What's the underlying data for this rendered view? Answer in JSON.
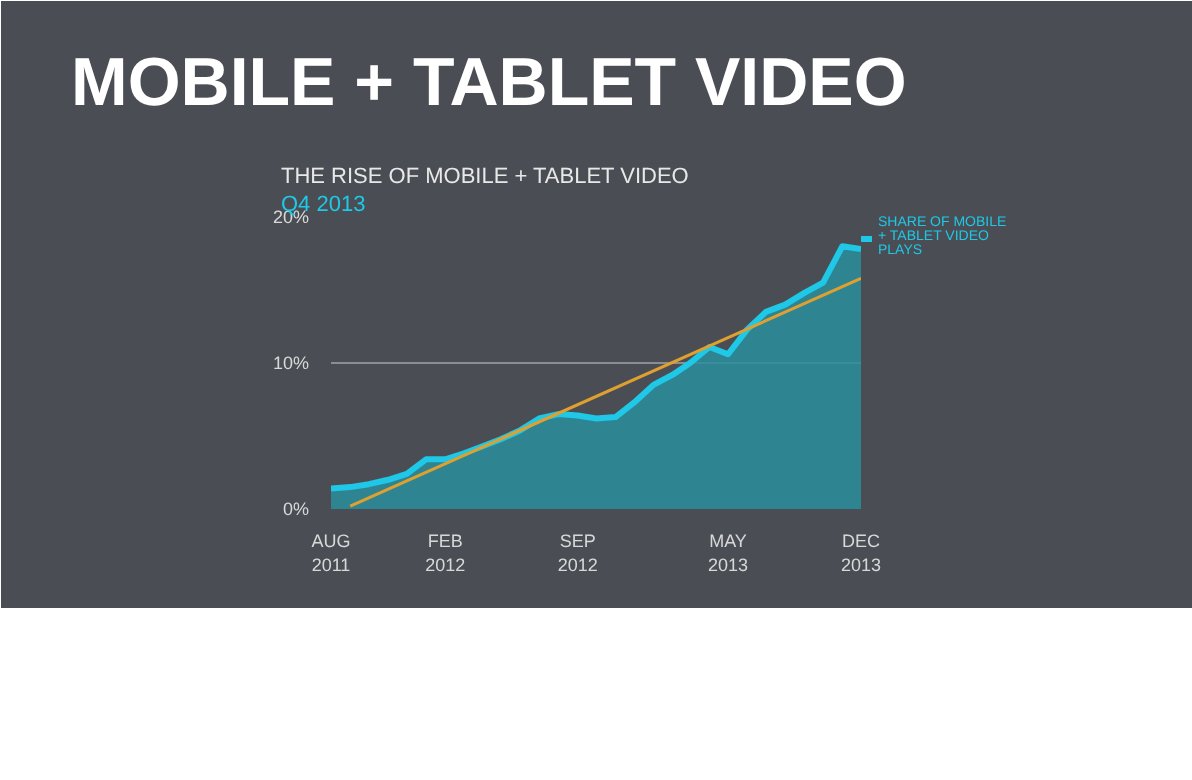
{
  "chart_data": {
    "type": "area",
    "title": "MOBILE + TABLET VIDEO",
    "subtitle": "THE RISE OF MOBILE + TABLET VIDEO",
    "annotations": [
      "Q4 2013"
    ],
    "xlim": [
      "2011-08",
      "2013-12"
    ],
    "xticks": [
      {
        "value": "2011-08",
        "label": "AUG\n2011"
      },
      {
        "value": "2012-02",
        "label": "FEB\n2012"
      },
      {
        "value": "2012-09",
        "label": "SEP\n2012"
      },
      {
        "value": "2013-05",
        "label": "MAY\n2013"
      },
      {
        "value": "2013-12",
        "label": "DEC\n2013"
      }
    ],
    "ylim": [
      0,
      20
    ],
    "yticks": [
      {
        "value": 0,
        "label": "0%"
      },
      {
        "value": 10,
        "label": "10%"
      },
      {
        "value": 20,
        "label": "20%"
      }
    ],
    "grid": "y",
    "legend": "right",
    "series": [
      {
        "name": "SHARE OF MOBILE + TABLET VIDEO PLAYS",
        "color": "#1ec8e6",
        "x": [
          "2011-08",
          "2011-09",
          "2011-10",
          "2011-11",
          "2011-12",
          "2012-01",
          "2012-02",
          "2012-03",
          "2012-04",
          "2012-05",
          "2012-06",
          "2012-07",
          "2012-08",
          "2012-09",
          "2012-10",
          "2012-11",
          "2012-12",
          "2013-01",
          "2013-02",
          "2013-03",
          "2013-04",
          "2013-05",
          "2013-06",
          "2013-07",
          "2013-08",
          "2013-09",
          "2013-10",
          "2013-11",
          "2013-12"
        ],
        "values": [
          1.4,
          1.5,
          1.7,
          2.0,
          2.4,
          3.4,
          3.4,
          3.8,
          4.3,
          4.8,
          5.4,
          6.2,
          6.5,
          6.4,
          6.2,
          6.3,
          7.3,
          8.5,
          9.2,
          10.0,
          11.1,
          10.6,
          12.3,
          13.5,
          14.0,
          14.8,
          15.5,
          18.0,
          17.8
        ]
      },
      {
        "type": "line",
        "color": "#e0a030",
        "x": [
          "2011-09",
          "2013-12"
        ],
        "values": [
          0.2,
          15.8
        ]
      }
    ]
  }
}
